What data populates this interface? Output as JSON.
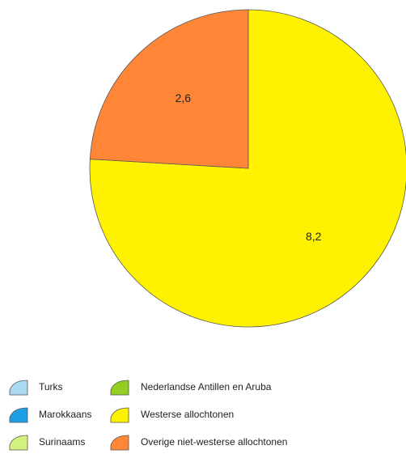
{
  "chart_data": {
    "type": "pie",
    "categories": [
      "Turks",
      "Marokkaans",
      "Surinaams",
      "Nederlandse Antillen en Aruba",
      "Westerse allochtonen",
      "Overige niet-westerse allochtonen"
    ],
    "values": [
      null,
      null,
      null,
      null,
      8.2,
      2.6
    ],
    "value_labels": [
      null,
      null,
      null,
      null,
      "8,2",
      "2,6"
    ],
    "colors": [
      "#a9daf2",
      "#1f9fe3",
      "#d3f27d",
      "#93cf22",
      "#fff200",
      "#ff8636"
    ]
  }
}
